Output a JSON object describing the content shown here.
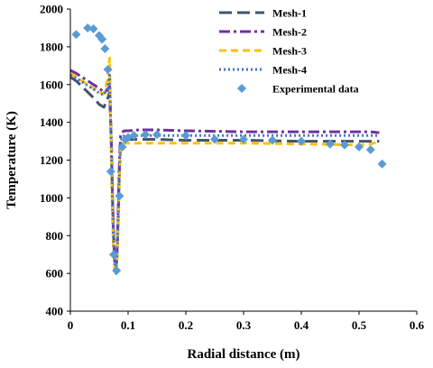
{
  "chart_data": {
    "type": "line",
    "xlabel": "Radial distance (m)",
    "ylabel": "Temperature (K)",
    "xlim": [
      0,
      0.6
    ],
    "ylim": [
      400,
      2000
    ],
    "xticks": [
      0,
      0.1,
      0.2,
      0.3,
      0.4,
      0.5,
      0.6
    ],
    "yticks": [
      400,
      600,
      800,
      1000,
      1200,
      1400,
      1600,
      1800,
      2000
    ],
    "xtick_labels": [
      "0",
      "0.1",
      "0.2",
      "0.3",
      "0.4",
      "0.5",
      "0.6"
    ],
    "ytick_labels": [
      "400",
      "600",
      "800",
      "1000",
      "1200",
      "1400",
      "1600",
      "1800",
      "2000"
    ],
    "grid": false,
    "legend_position": "top-right",
    "series": [
      {
        "name": "Mesh-1",
        "style": "long-dash",
        "color": "#44546A",
        "x": [
          0,
          0.01,
          0.02,
          0.03,
          0.04,
          0.05,
          0.058,
          0.064,
          0.068,
          0.071,
          0.073,
          0.075,
          0.077,
          0.079,
          0.081,
          0.083,
          0.085,
          0.087,
          0.089,
          0.091,
          0.094,
          0.1,
          0.15,
          0.2,
          0.3,
          0.4,
          0.5,
          0.52,
          0.535
        ],
        "y": [
          1640,
          1620,
          1590,
          1560,
          1530,
          1495,
          1480,
          1520,
          1560,
          1300,
          1000,
          800,
          650,
          600,
          700,
          900,
          1150,
          1280,
          1300,
          1305,
          1310,
          1310,
          1310,
          1305,
          1305,
          1300,
          1300,
          1300,
          1300
        ]
      },
      {
        "name": "Mesh-2",
        "style": "dash-dot",
        "color": "#7030A0",
        "x": [
          0,
          0.01,
          0.02,
          0.03,
          0.04,
          0.05,
          0.058,
          0.064,
          0.068,
          0.071,
          0.073,
          0.075,
          0.077,
          0.079,
          0.081,
          0.083,
          0.085,
          0.087,
          0.089,
          0.091,
          0.094,
          0.1,
          0.12,
          0.15,
          0.2,
          0.3,
          0.4,
          0.5,
          0.52,
          0.535
        ],
        "y": [
          1675,
          1660,
          1640,
          1620,
          1600,
          1580,
          1560,
          1570,
          1590,
          1300,
          1000,
          780,
          640,
          610,
          720,
          950,
          1200,
          1330,
          1345,
          1350,
          1355,
          1355,
          1360,
          1360,
          1355,
          1350,
          1350,
          1350,
          1350,
          1345
        ]
      },
      {
        "name": "Mesh-3",
        "style": "dash",
        "color": "#FFC000",
        "x": [
          0,
          0.01,
          0.02,
          0.03,
          0.04,
          0.05,
          0.058,
          0.064,
          0.068,
          0.071,
          0.073,
          0.075,
          0.077,
          0.079,
          0.081,
          0.083,
          0.085,
          0.087,
          0.089,
          0.091,
          0.094,
          0.1,
          0.15,
          0.2,
          0.3,
          0.4,
          0.5,
          0.52,
          0.535
        ],
        "y": [
          1660,
          1640,
          1620,
          1600,
          1580,
          1560,
          1550,
          1620,
          1740,
          1200,
          900,
          700,
          620,
          600,
          680,
          850,
          1100,
          1260,
          1285,
          1290,
          1290,
          1290,
          1290,
          1290,
          1290,
          1285,
          1280,
          1285,
          1300
        ]
      },
      {
        "name": "Mesh-4",
        "style": "dot",
        "color": "#4472C4",
        "x": [
          0,
          0.01,
          0.02,
          0.03,
          0.04,
          0.05,
          0.058,
          0.064,
          0.068,
          0.071,
          0.073,
          0.075,
          0.077,
          0.079,
          0.081,
          0.083,
          0.085,
          0.087,
          0.089,
          0.091,
          0.094,
          0.1,
          0.15,
          0.2,
          0.3,
          0.4,
          0.5,
          0.52,
          0.535
        ],
        "y": [
          1650,
          1635,
          1615,
          1595,
          1575,
          1555,
          1545,
          1580,
          1650,
          1250,
          950,
          750,
          640,
          610,
          700,
          900,
          1150,
          1300,
          1320,
          1325,
          1330,
          1330,
          1330,
          1330,
          1330,
          1330,
          1330,
          1330,
          1330
        ]
      },
      {
        "name": "Experimental data",
        "style": "markers",
        "marker": "diamond",
        "color": "#5B9BD5",
        "x": [
          0.01,
          0.03,
          0.04,
          0.05,
          0.055,
          0.06,
          0.065,
          0.07,
          0.075,
          0.08,
          0.085,
          0.09,
          0.095,
          0.1,
          0.11,
          0.13,
          0.15,
          0.2,
          0.25,
          0.3,
          0.35,
          0.4,
          0.45,
          0.475,
          0.5,
          0.52,
          0.54
        ],
        "y": [
          1865,
          1900,
          1895,
          1860,
          1840,
          1790,
          1680,
          1140,
          700,
          615,
          1010,
          1270,
          1310,
          1320,
          1330,
          1335,
          1335,
          1330,
          1310,
          1310,
          1305,
          1300,
          1285,
          1280,
          1270,
          1255,
          1180
        ]
      }
    ]
  }
}
